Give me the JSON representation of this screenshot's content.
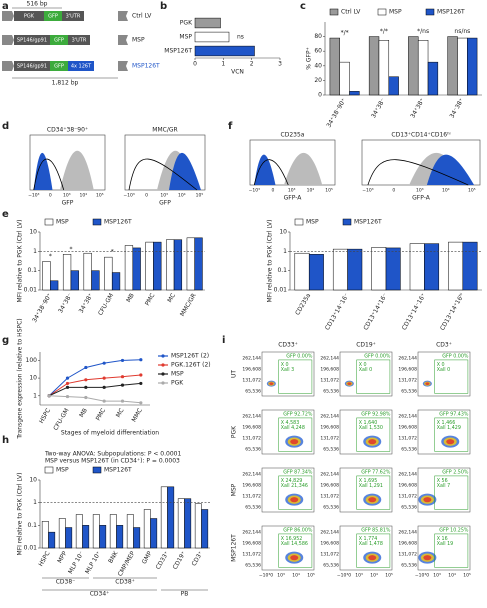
{
  "panel_labels": [
    "a",
    "b",
    "c",
    "d",
    "e",
    "f",
    "g",
    "h",
    "i"
  ],
  "diagram": {
    "top_length": "516 bp",
    "bottom_length": "1,812 bp",
    "constructs": [
      {
        "promoter": "PGK",
        "gfp": "GFP",
        "utr": "3'UTR",
        "name": "Ctrl LV"
      },
      {
        "promoter": "SP146/gp91",
        "gfp": "GFP",
        "utr": "3'UTR",
        "name": "MSP"
      },
      {
        "promoter": "SP146/gp91",
        "gfp": "GFP",
        "utr": "4x 126T",
        "name": "MSP126T"
      }
    ]
  },
  "histograms": [
    {
      "title": "CD34⁺38⁻90⁺",
      "xlabel": "GFP",
      "xticks": [
        "−10³",
        "0",
        "10³",
        "10⁴",
        "10⁵"
      ]
    },
    {
      "title": "MMC/GR",
      "xlabel": "GFP",
      "xticks": [
        "−10³",
        "0",
        "10³",
        "10⁴",
        "10⁵"
      ]
    },
    {
      "title": "CD235a",
      "xlabel": "GFP-A",
      "xticks": [
        "−10³",
        "0",
        "10³",
        "10⁴",
        "10⁵"
      ]
    },
    {
      "title": "CD13⁺CD14⁺CD16ʰⁱ",
      "xlabel": "GFP-A",
      "xticks": [
        "−10³",
        "0",
        "10³",
        "10⁴",
        "10⁵"
      ]
    }
  ],
  "chart_data": [
    {
      "type": "hbar",
      "categories": [
        "PGK",
        "MSP",
        "MSP126T"
      ],
      "values": [
        0.9,
        1.2,
        2.1
      ],
      "colors": [
        "#9a9a9a",
        "#ffffff",
        "#1f55c8"
      ],
      "annotations": [
        null,
        "ns",
        null
      ],
      "xlim": [
        0,
        3
      ],
      "xticks": [
        0,
        1,
        2,
        3
      ],
      "xlabel": "VCN"
    },
    {
      "type": "bar",
      "legend": "top",
      "ylabel": "% GFP⁺",
      "categories": [
        "34⁺38⁻90⁺",
        "34⁺38⁻",
        "34⁺38⁺",
        "34⁻38⁺"
      ],
      "series": [
        {
          "name": "Ctrl LV",
          "color": "#9a9a9a",
          "values": [
            78,
            80,
            80,
            80
          ]
        },
        {
          "name": "MSP",
          "color": "#ffffff",
          "values": [
            45,
            75,
            75,
            78
          ]
        },
        {
          "name": "MSP126T",
          "color": "#1f55c8",
          "values": [
            5,
            25,
            45,
            78
          ]
        }
      ],
      "group_annotations": [
        "*/*",
        "*/*",
        "*/ns",
        "ns/ns"
      ],
      "ylim": [
        0,
        100
      ],
      "yticks": [
        0,
        20,
        40,
        60,
        80
      ],
      "log": false
    },
    {
      "type": "bar",
      "legend": "top",
      "ylabel": "MFI relative to PGK (Ctrl LV)",
      "categories": [
        "34⁺38⁻90⁺",
        "34⁺38⁻",
        "34⁺38⁺",
        "CFU-GM",
        "MB",
        "PMC",
        "MC",
        "MMC/GR"
      ],
      "series": [
        {
          "name": "MSP",
          "color": "#ffffff",
          "values": [
            0.3,
            0.7,
            0.8,
            0.5,
            2,
            3,
            4,
            5
          ]
        },
        {
          "name": "MSP126T",
          "color": "#1f55c8",
          "values": [
            0.03,
            0.1,
            0.1,
            0.08,
            1.5,
            3,
            4,
            5
          ]
        }
      ],
      "group_annotations": [
        "*",
        "*",
        null,
        "*",
        null,
        null,
        null,
        null
      ],
      "reference_line": 1,
      "ylim": [
        0.01,
        10
      ],
      "yticks": [
        0.01,
        0.1,
        1,
        10
      ],
      "log": true
    },
    {
      "type": "bar",
      "legend": "top",
      "ylabel": "MFI relative to PGK (Ctrl LV)",
      "categories": [
        "CD235a",
        "CD13⁺14⁻16⁻",
        "CD13⁺14⁺16⁻",
        "CD13⁺14⁻16⁺",
        "CD13⁺14⁺16ʰⁱ"
      ],
      "series": [
        {
          "name": "MSP",
          "color": "#ffffff",
          "values": [
            0.8,
            1.3,
            1.6,
            2.5,
            3
          ]
        },
        {
          "name": "MSP126T",
          "color": "#1f55c8",
          "values": [
            0.7,
            1.3,
            1.5,
            2.5,
            3
          ]
        }
      ],
      "reference_line": 1,
      "ylim": [
        0.01,
        10
      ],
      "yticks": [
        0.01,
        0.1,
        1,
        10
      ],
      "log": true
    },
    {
      "type": "line",
      "legend": "right",
      "ylabel": "Transgene expression (relative to HSPC)",
      "xlabel": "Stages of myeloid differentiation",
      "categories": [
        "HSPC",
        "CFU-GM",
        "MB",
        "PMC",
        "MC",
        "MMC"
      ],
      "series": [
        {
          "name": "MSP126T (2)",
          "color": "#1f55c8",
          "values": [
            1,
            10,
            40,
            70,
            100,
            110
          ]
        },
        {
          "name": "PGK.126T (2)",
          "color": "#e03a2f",
          "values": [
            1,
            5,
            8,
            10,
            12,
            15
          ]
        },
        {
          "name": "MSP",
          "color": "#222222",
          "values": [
            1,
            3,
            3,
            3,
            4,
            5
          ]
        },
        {
          "name": "PGK",
          "color": "#aaaaaa",
          "values": [
            1,
            0.9,
            0.8,
            0.5,
            0.5,
            0.4
          ]
        }
      ],
      "ylim": [
        0.3,
        300
      ],
      "yticks": [
        1,
        10,
        100
      ],
      "log": true
    },
    {
      "type": "bar",
      "legend": "top",
      "ylabel": "MFI relative to PGK (Ctrl LV)",
      "annotations": [
        "Two-way ANOVA: Subpopulations: P < 0.0001",
        "MSP versus MSP126T (in CD34⁺): P = 0.0003"
      ],
      "categories": [
        "HSPC",
        "MPP",
        "MLP 10⁻",
        "MLP 10⁺",
        "BNK",
        "CMP/MEP",
        "GMP",
        "CD33⁺",
        "CD19⁺",
        "CD3⁺"
      ],
      "series": [
        {
          "name": "MSP",
          "color": "#ffffff",
          "values": [
            0.15,
            0.2,
            0.3,
            0.3,
            0.3,
            0.3,
            0.5,
            5,
            1.5,
            0.9
          ]
        },
        {
          "name": "MSP126T",
          "color": "#1f55c8",
          "values": [
            0.05,
            0.08,
            0.1,
            0.1,
            0.1,
            0.08,
            0.2,
            5,
            1.5,
            0.5
          ]
        }
      ],
      "subgroup_labels": [
        "CD38⁻",
        "CD38⁺",
        "CD34⁺",
        "PB"
      ],
      "reference_line": 1,
      "ylim": [
        0.01,
        10
      ],
      "yticks": [
        0.01,
        0.1,
        1,
        10
      ],
      "log": true
    }
  ],
  "flow": {
    "columns": [
      "CD33⁺",
      "CD19⁺",
      "CD3⁺"
    ],
    "rows": [
      "UT",
      "PGK",
      "MSP",
      "MSP126T"
    ],
    "yticks": [
      "262,144",
      "196,608",
      "131,072",
      "65,536"
    ],
    "xticks": [
      "−10³0",
      "10³",
      "10⁴",
      "10⁵"
    ],
    "gates": [
      [
        {
          "gfp": "GFP 0.00%",
          "x": "X 0",
          "xall": "Xall 3"
        },
        {
          "gfp": "GFP 0.00%",
          "x": "X 0",
          "xall": "Xall 0"
        },
        {
          "gfp": "GFP 0.00%",
          "x": "X 0",
          "xall": "Xall 0"
        }
      ],
      [
        {
          "gfp": "GFP 92.72%",
          "x": "X 4,583",
          "xall": "Xall 4,248"
        },
        {
          "gfp": "GFP 92.98%",
          "x": "X 1,640",
          "xall": "Xall 1,530"
        },
        {
          "gfp": "GFP 97.43%",
          "x": "X 1,466",
          "xall": "Xall 1,429"
        }
      ],
      [
        {
          "gfp": "GFP 87.34%",
          "x": "X 24,829",
          "xall": "Xall 21,346"
        },
        {
          "gfp": "GFP 77.62%",
          "x": "X 1,695",
          "xall": "Xall 1,291"
        },
        {
          "gfp": "GFP 2.50%",
          "x": "X 56",
          "xall": "Xall 7"
        }
      ],
      [
        {
          "gfp": "GFP 86.00%",
          "x": "X 16,952",
          "xall": "Xall 14,586"
        },
        {
          "gfp": "GFP 85.81%",
          "x": "X 1,774",
          "xall": "Xall 1,478"
        },
        {
          "gfp": "GFP 10.25%",
          "x": "X 16",
          "xall": "Xall 19"
        }
      ]
    ]
  }
}
